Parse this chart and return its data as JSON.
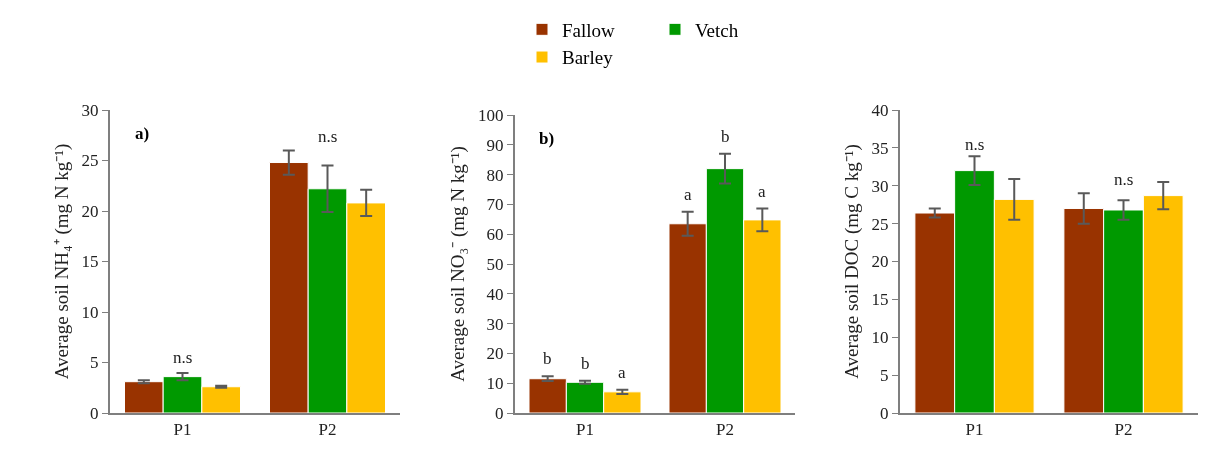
{
  "chart_data": [
    {
      "type": "bar",
      "ylabel": "Average soil NH₄⁺ (mg N kg⁻¹)",
      "categories": [
        "P1",
        "P2"
      ],
      "ylim": [
        0,
        30
      ],
      "yticks": [
        0,
        5,
        10,
        15,
        20,
        25,
        30
      ],
      "grid": false,
      "series": [
        {
          "color": "#993300",
          "values": [
            3.1,
            24.8
          ],
          "errors": [
            0.15,
            1.2
          ]
        },
        {
          "color": "#009900",
          "values": [
            3.6,
            22.2
          ],
          "errors": [
            0.35,
            2.3
          ]
        },
        {
          "color": "#ffc000",
          "values": [
            2.6,
            20.8
          ],
          "errors": [
            0.1,
            1.3
          ]
        }
      ],
      "annotations": [
        "a)",
        "n.s",
        "n.s"
      ]
    },
    {
      "type": "bar",
      "ylabel": "Average soil NO₃⁻ (mg N kg⁻¹)",
      "categories": [
        "P1",
        "P2"
      ],
      "ylim": [
        0,
        100
      ],
      "yticks": [
        0,
        10,
        20,
        30,
        40,
        50,
        60,
        70,
        80,
        90,
        100
      ],
      "grid": false,
      "legend": "top",
      "series": [
        {
          "name": "Fallow",
          "color": "#993300",
          "values": [
            11.5,
            63.5
          ],
          "errors": [
            0.8,
            4
          ],
          "value_labels": [
            "b",
            "a"
          ]
        },
        {
          "name": "Vetch",
          "color": "#009900",
          "values": [
            10.3,
            82
          ],
          "errors": [
            0.5,
            5
          ],
          "value_labels": [
            "b",
            "b"
          ]
        },
        {
          "name": "Barley",
          "color": "#ffc000",
          "values": [
            7.1,
            64.8
          ],
          "errors": [
            0.7,
            3.8
          ],
          "value_labels": [
            "a",
            "a"
          ]
        }
      ],
      "annotations": [
        "b)"
      ]
    },
    {
      "type": "bar",
      "ylabel": "Average soil DOC (mg C kg⁻¹)",
      "categories": [
        "P1",
        "P2"
      ],
      "ylim": [
        0,
        40
      ],
      "yticks": [
        0,
        5,
        10,
        15,
        20,
        25,
        30,
        35,
        40
      ],
      "grid": false,
      "series": [
        {
          "color": "#993300",
          "values": [
            26.4,
            27
          ],
          "errors": [
            0.6,
            2
          ]
        },
        {
          "color": "#009900",
          "values": [
            32,
            26.8
          ],
          "errors": [
            1.9,
            1.3
          ]
        },
        {
          "color": "#ffc000",
          "values": [
            28.2,
            28.7
          ],
          "errors": [
            2.7,
            1.8
          ]
        }
      ],
      "annotations": [
        "n.s",
        "n.s"
      ]
    }
  ]
}
